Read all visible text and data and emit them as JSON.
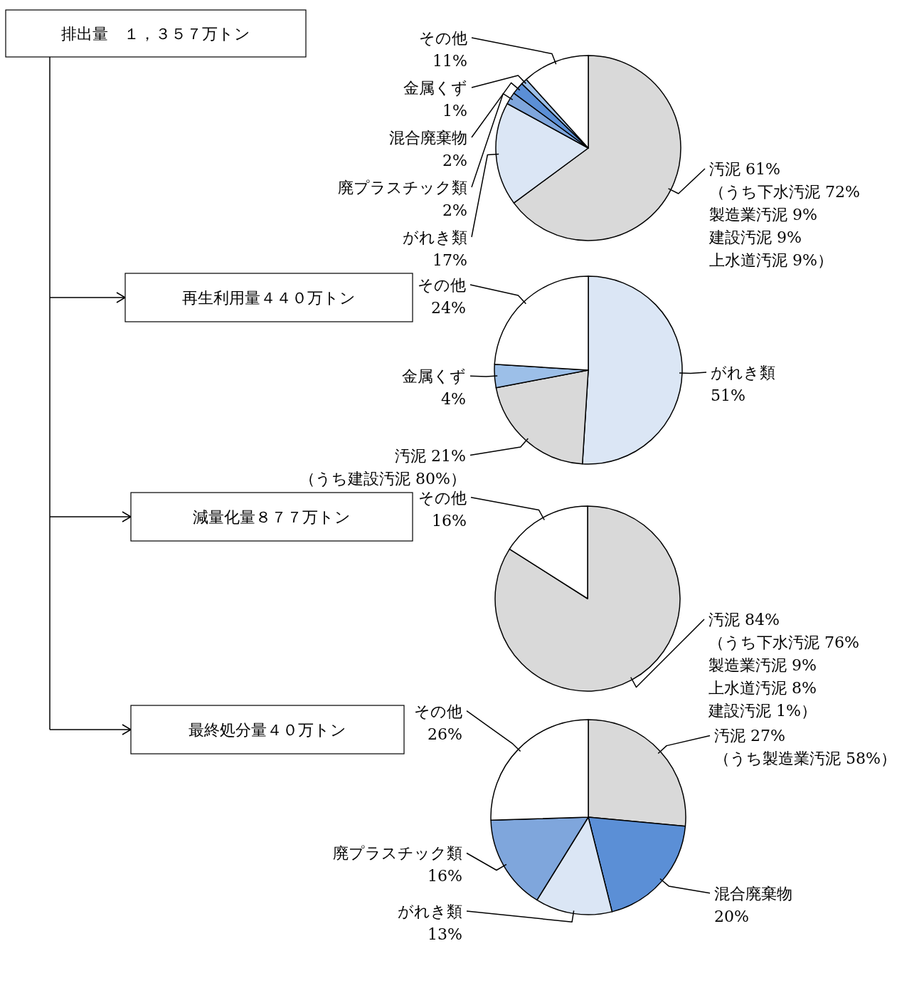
{
  "chart_data": [
    {
      "type": "pie",
      "title": "排出量　１，３５７万トン",
      "categories": [
        "汚泥",
        "がれき類",
        "廃プラスチック類",
        "混合廃棄物",
        "金属くず",
        "その他"
      ],
      "values": [
        61,
        17,
        2,
        2,
        1,
        11
      ],
      "value_labels": [
        "61%",
        "17%",
        "2%",
        "2%",
        "1%",
        "11%"
      ],
      "colors": [
        "#d9d9d9",
        "#dbe6f5",
        "#7fa6dc",
        "#5b8fd6",
        "#9cbfe8",
        "#ffffff"
      ],
      "annotations": [
        {
          "text": "（うち下水汚泥 72%\n製造業汚泥 9%\n建設汚泥 9%\n上水道汚泥 9%）",
          "x": "汚泥"
        }
      ]
    },
    {
      "type": "pie",
      "title": "再生利用量４４０万トン",
      "categories": [
        "がれき類",
        "汚泥",
        "金属くず",
        "その他"
      ],
      "values": [
        51,
        21,
        4,
        24
      ],
      "value_labels": [
        "51%",
        "21%",
        "4%",
        "24%"
      ],
      "colors": [
        "#dbe6f5",
        "#d9d9d9",
        "#9cbfe8",
        "#ffffff"
      ],
      "annotations": [
        {
          "text": "（うち建設汚泥 80%）",
          "x": "汚泥"
        }
      ]
    },
    {
      "type": "pie",
      "title": "減量化量８７７万トン",
      "categories": [
        "汚泥",
        "その他"
      ],
      "values": [
        84,
        16
      ],
      "value_labels": [
        "84%",
        "16%"
      ],
      "colors": [
        "#d9d9d9",
        "#ffffff"
      ],
      "annotations": [
        {
          "text": "（うち下水汚泥 76%\n製造業汚泥 9%\n上水道汚泥 8%\n建設汚泥 1%）",
          "x": "汚泥"
        }
      ]
    },
    {
      "type": "pie",
      "title": "最終処分量４０万トン",
      "categories": [
        "汚泥",
        "混合廃棄物",
        "がれき類",
        "廃プラスチック類",
        "その他"
      ],
      "values": [
        27,
        20,
        13,
        16,
        26
      ],
      "value_labels": [
        "27%",
        "20%",
        "13%",
        "16%",
        "26%"
      ],
      "colors": [
        "#d9d9d9",
        "#5b8fd6",
        "#dbe6f5",
        "#7fa6dc",
        "#ffffff"
      ],
      "annotations": [
        {
          "text": "（うち製造業汚泥 58%）",
          "x": "汚泥"
        }
      ]
    }
  ]
}
